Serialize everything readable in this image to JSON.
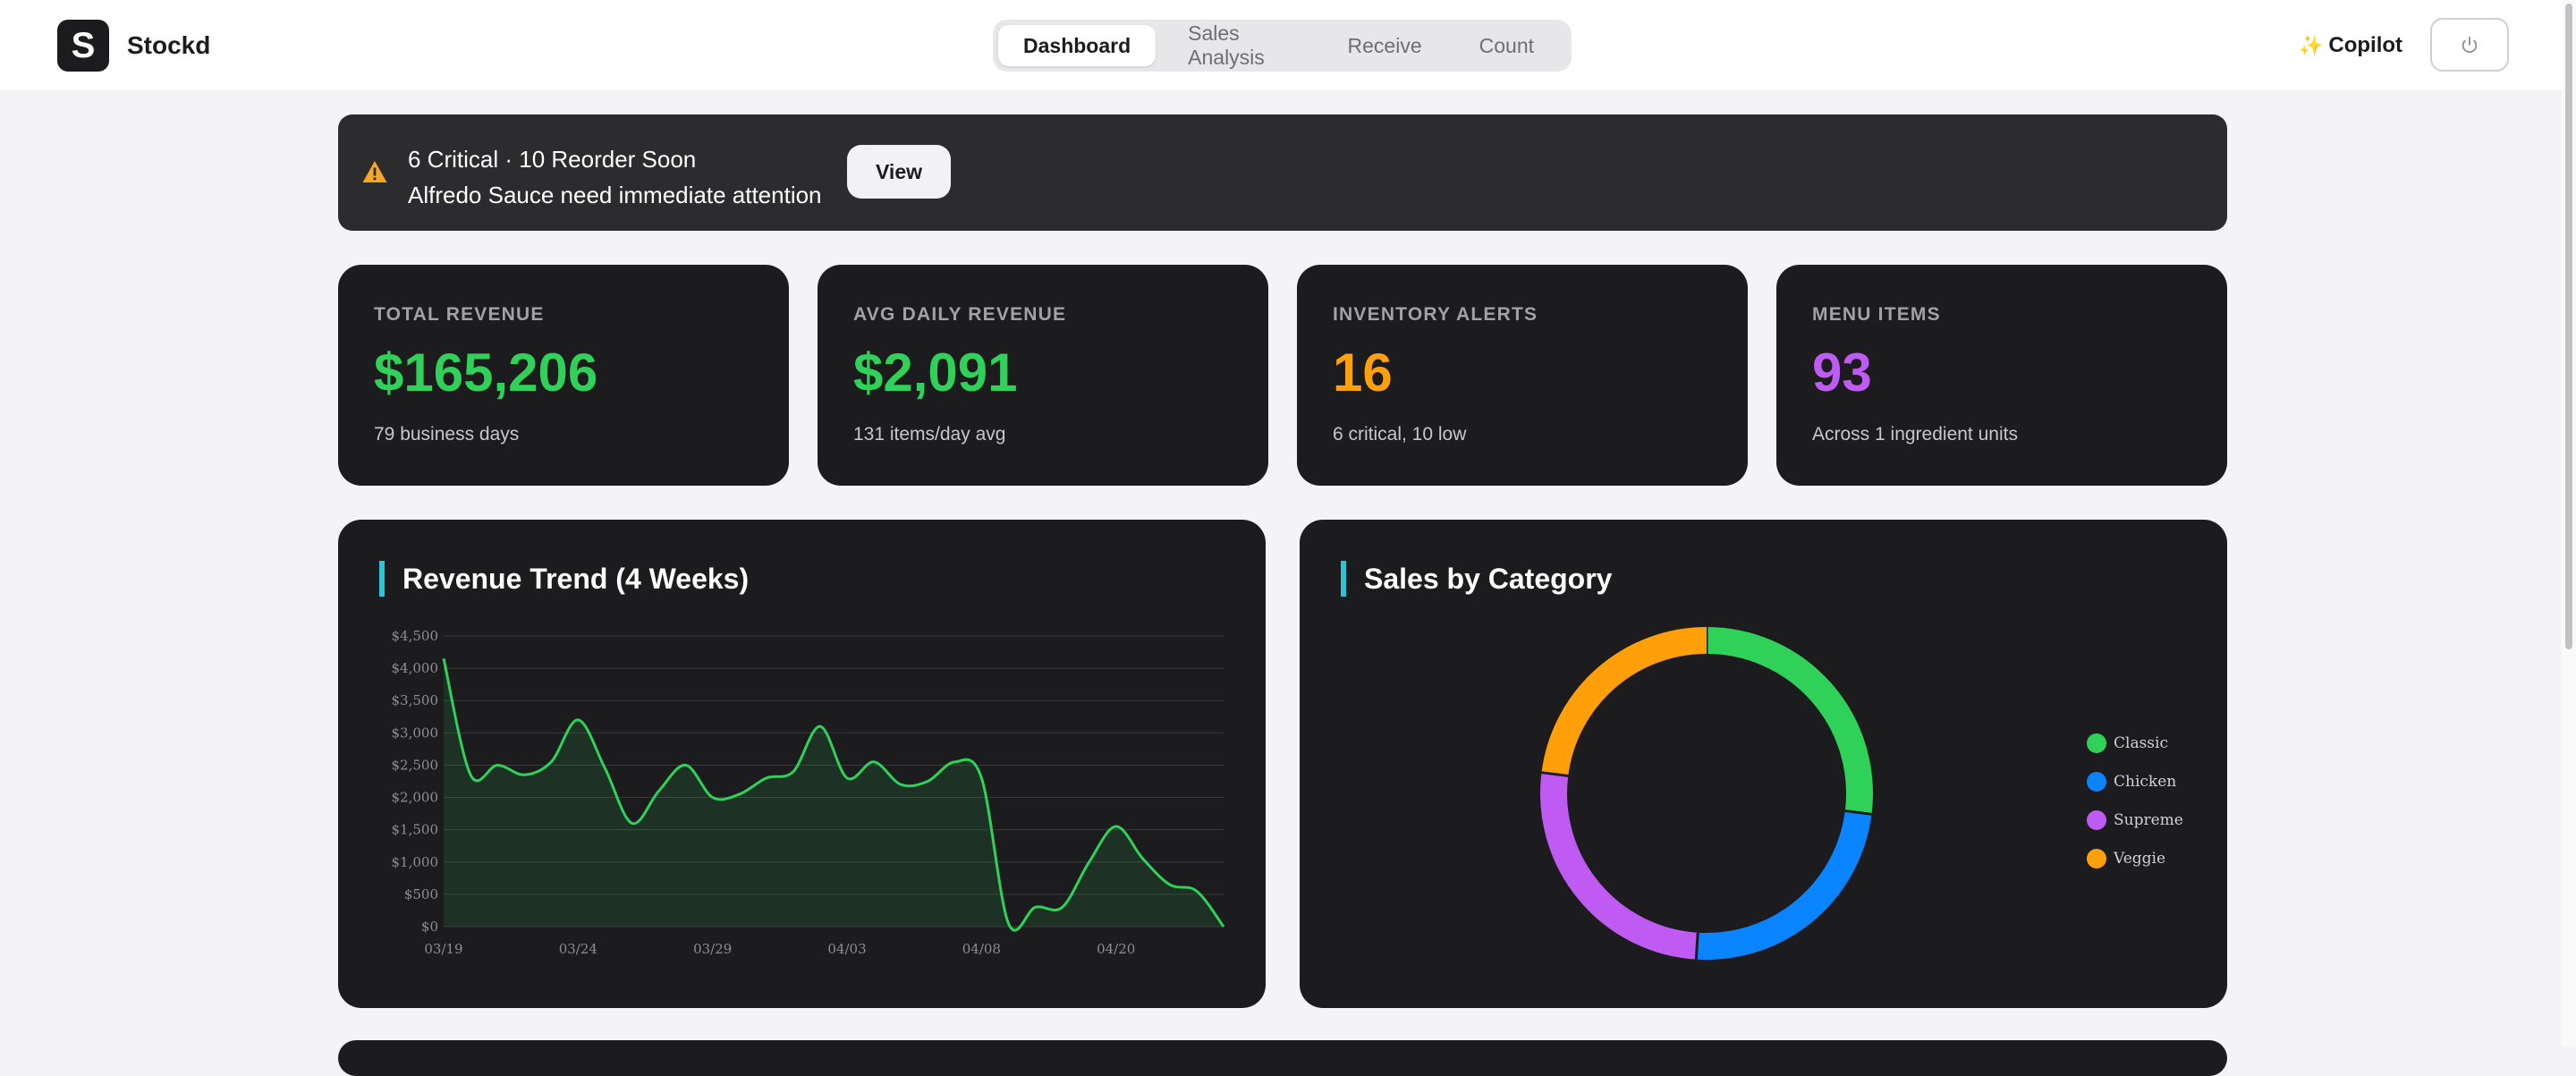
{
  "header": {
    "logo_letter": "S",
    "app_name": "Stockd",
    "tabs": [
      {
        "label": "Dashboard",
        "active": true
      },
      {
        "label": "Sales Analysis",
        "active": false
      },
      {
        "label": "Receive",
        "active": false
      },
      {
        "label": "Count",
        "active": false
      }
    ],
    "copilot_label": "Copilot",
    "copilot_icon": "sparkles-icon",
    "power_icon": "power-icon"
  },
  "alert": {
    "summary": "6 Critical · 10 Reorder Soon",
    "detail": "Alfredo Sauce need immediate attention",
    "button_label": "View",
    "icon": "warning-icon",
    "icon_color": "#f5a623"
  },
  "stats": [
    {
      "label": "TOTAL REVENUE",
      "value": "$165,206",
      "sub": "79 business days",
      "color": "#30d158"
    },
    {
      "label": "AVG DAILY REVENUE",
      "value": "$2,091",
      "sub": "131 items/day avg",
      "color": "#30d158"
    },
    {
      "label": "INVENTORY ALERTS",
      "value": "16",
      "sub": "6 critical, 10 low",
      "color": "#ff9f0a"
    },
    {
      "label": "MENU ITEMS",
      "value": "93",
      "sub": "Across 1 ingredient units",
      "color": "#bf5af2"
    }
  ],
  "revenue_card": {
    "title": "Revenue Trend (4 Weeks)"
  },
  "category_card": {
    "title": "Sales by Category"
  },
  "chart_data": [
    {
      "type": "area",
      "title": "Revenue Trend (4 Weeks)",
      "x_tick_labels": [
        "03/19",
        "03/24",
        "03/29",
        "04/03",
        "04/08",
        "04/20"
      ],
      "y_tick_labels": [
        "$0",
        "$500",
        "$1,000",
        "$1,500",
        "$2,000",
        "$2,500",
        "$3,000",
        "$3,500",
        "$4,000",
        "$4,500"
      ],
      "ylim": [
        0,
        4500
      ],
      "grid": true,
      "line_color": "#30d158",
      "series": [
        {
          "values": [
            4150,
            2350,
            2500,
            2350,
            2550,
            3200,
            2450,
            1600,
            2100,
            2500,
            2000,
            2050,
            2300,
            2400,
            3100,
            2300,
            2550,
            2200,
            2250,
            2550,
            2300,
            50,
            300,
            300,
            1000,
            1550,
            1050,
            650,
            550,
            0
          ]
        }
      ]
    },
    {
      "type": "pie",
      "title": "Sales by Category",
      "legend_position": "right",
      "slices": [
        {
          "name": "Classic",
          "value": 27,
          "color": "#30d158"
        },
        {
          "name": "Chicken",
          "value": 24,
          "color": "#0a84ff"
        },
        {
          "name": "Supreme",
          "value": 26,
          "color": "#bf5af2"
        },
        {
          "name": "Veggie",
          "value": 23,
          "color": "#ff9f0a"
        }
      ]
    }
  ]
}
